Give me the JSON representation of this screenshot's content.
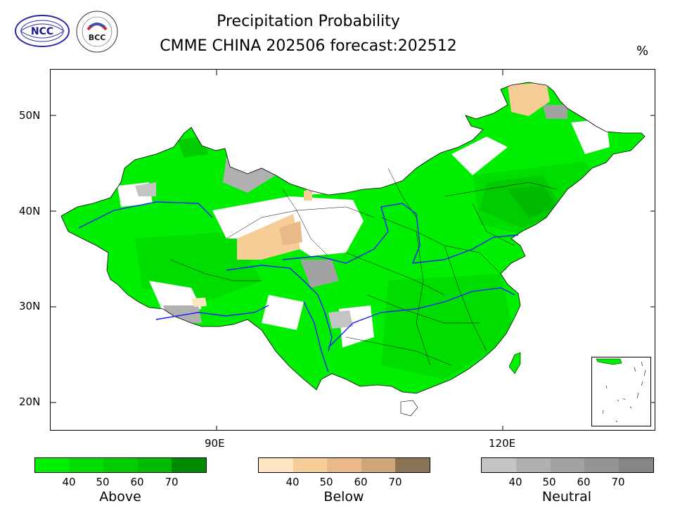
{
  "title": {
    "line1": "Precipitation Probability",
    "line2": "CMME CHINA 202506 forecast:202512",
    "unit": "%"
  },
  "logos": {
    "ncc": "NCC",
    "bcc": "BCC"
  },
  "axes": {
    "lat_labels": [
      "50N",
      "40N",
      "30N",
      "20N"
    ],
    "lon_labels": [
      "90E",
      "120E"
    ]
  },
  "legends": [
    {
      "name": "Above",
      "ticks": [
        "40",
        "50",
        "60",
        "70"
      ],
      "colors": [
        "#00ee00",
        "#00de00",
        "#00cc00",
        "#00bb00",
        "#008a00"
      ]
    },
    {
      "name": "Below",
      "ticks": [
        "40",
        "50",
        "60",
        "70"
      ],
      "colors": [
        "#fde4c2",
        "#f6cd97",
        "#eab98a",
        "#cfa57a",
        "#8b7355"
      ]
    },
    {
      "name": "Neutral",
      "ticks": [
        "40",
        "50",
        "60",
        "70"
      ],
      "colors": [
        "#c4c4c4",
        "#b0b0b0",
        "#a2a2a2",
        "#949494",
        "#868686"
      ]
    }
  ],
  "colors": {
    "river": "#1a1aff",
    "boundary": "#000000"
  }
}
